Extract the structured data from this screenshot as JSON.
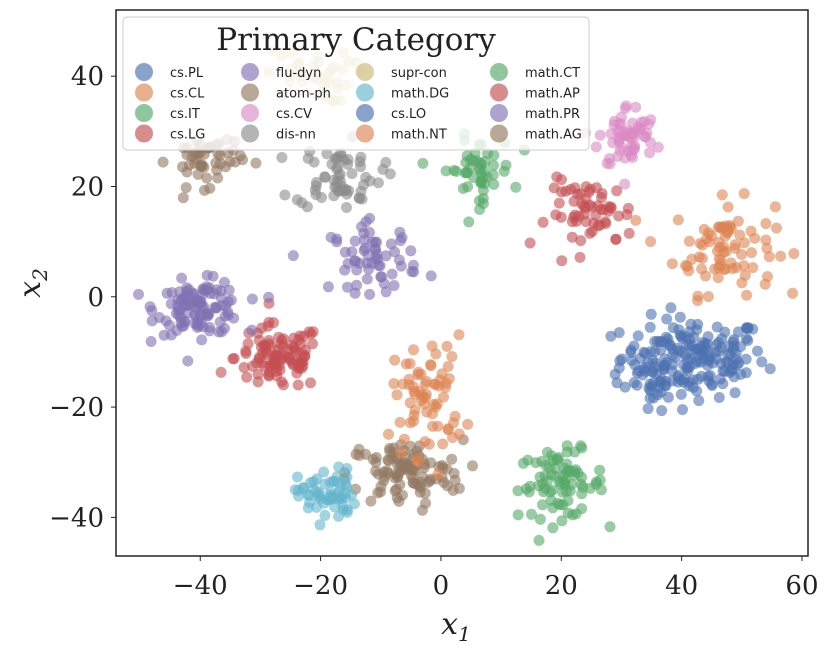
{
  "chart_data": {
    "type": "scatter",
    "title": "",
    "xlabel": "x",
    "xlabel_sub": "1",
    "ylabel": "x",
    "ylabel_sub": "2",
    "xlim": [
      -54,
      61
    ],
    "ylim": [
      -47,
      52
    ],
    "xticks": [
      -40,
      -20,
      0,
      20,
      40,
      60
    ],
    "yticks": [
      -40,
      -20,
      0,
      20,
      40
    ],
    "xtick_labels": [
      "−40",
      "−20",
      "0",
      "20",
      "40",
      "60"
    ],
    "ytick_labels": [
      "−40",
      "−20",
      "0",
      "20",
      "40"
    ],
    "grid": false,
    "legend": {
      "title": "Primary Category",
      "placement": "top-left",
      "columns": 4
    },
    "series": [
      {
        "name": "cs.PL",
        "color": "#4c72b0",
        "center": [
          42,
          -11
        ],
        "spread": [
          10,
          6
        ],
        "count": 170
      },
      {
        "name": "cs.CL",
        "color": "#dd8452",
        "center": [
          47,
          9
        ],
        "spread": [
          7,
          7
        ],
        "count": 80
      },
      {
        "name": "cs.IT",
        "color": "#55a868",
        "center": [
          20,
          -34
        ],
        "spread": [
          6,
          5
        ],
        "count": 80
      },
      {
        "name": "cs.LG",
        "color": "#c44e52",
        "center": [
          -27,
          -11
        ],
        "spread": [
          6,
          5
        ],
        "count": 100
      },
      {
        "name": "flu-dyn",
        "color": "#8172b3",
        "center": [
          -40,
          -2
        ],
        "spread": [
          6,
          4
        ],
        "count": 110
      },
      {
        "name": "atom-ph",
        "color": "#937860",
        "center": [
          -6,
          -32
        ],
        "spread": [
          8,
          5
        ],
        "count": 100
      },
      {
        "name": "cs.CV",
        "color": "#da8bc3",
        "center": [
          31,
          29
        ],
        "spread": [
          4,
          5
        ],
        "count": 60
      },
      {
        "name": "dis-nn",
        "color": "#8c8c8c",
        "center": [
          -17,
          22
        ],
        "spread": [
          6,
          5
        ],
        "count": 60
      },
      {
        "name": "supr-con",
        "color": "#ccb974",
        "center": [
          -22,
          40
        ],
        "spread": [
          6,
          4
        ],
        "count": 40
      },
      {
        "name": "math.DG",
        "color": "#64b5cd",
        "center": [
          -19,
          -36
        ],
        "spread": [
          4,
          4
        ],
        "count": 60
      },
      {
        "name": "cs.LO",
        "color": "#4c72b0",
        "center": [
          36,
          -16
        ],
        "spread": [
          5,
          5
        ],
        "count": 30
      },
      {
        "name": "math.NT",
        "color": "#dd8452",
        "center": [
          -2,
          -18
        ],
        "spread": [
          5,
          9
        ],
        "count": 70
      },
      {
        "name": "math.CT",
        "color": "#55a868",
        "center": [
          6,
          23
        ],
        "spread": [
          5,
          5
        ],
        "count": 50
      },
      {
        "name": "math.AP",
        "color": "#c44e52",
        "center": [
          25,
          15
        ],
        "spread": [
          6,
          5
        ],
        "count": 60
      },
      {
        "name": "math.PR",
        "color": "#8172b3",
        "center": [
          -11,
          7
        ],
        "spread": [
          6,
          5
        ],
        "count": 60
      },
      {
        "name": "math.AG",
        "color": "#937860",
        "center": [
          -39,
          25
        ],
        "spread": [
          5,
          4
        ],
        "count": 50
      }
    ]
  }
}
